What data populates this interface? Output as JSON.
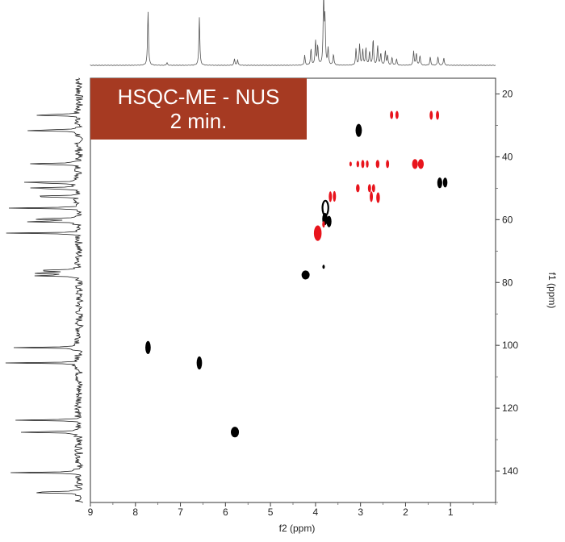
{
  "banner": {
    "line1": "HSQC-ME - NUS",
    "line2": "2 min."
  },
  "colors": {
    "banner": "#a63a22",
    "positive": "#000000",
    "negative": "#e8141c"
  },
  "chart_data": {
    "type": "scatter",
    "title": "",
    "xlabel": "f2 (ppm)",
    "ylabel": "f1 (ppm)",
    "xlim": [
      9.0,
      0.0
    ],
    "ylim": [
      15,
      150
    ],
    "x_reversed": true,
    "y_reversed": true,
    "x_ticks": [
      9,
      8,
      7,
      6,
      5,
      4,
      3,
      2,
      1
    ],
    "y_ticks": [
      20,
      40,
      60,
      80,
      100,
      120,
      140
    ],
    "grid": false,
    "series": [
      {
        "color": "#000000",
        "points": [
          {
            "x": 7.72,
            "y": 100.7,
            "w": 0.12,
            "h": 1.6
          },
          {
            "x": 6.58,
            "y": 105.6,
            "w": 0.12,
            "h": 1.6
          },
          {
            "x": 5.79,
            "y": 127.6,
            "w": 0.18,
            "h": 1.3
          },
          {
            "x": 4.22,
            "y": 77.6,
            "w": 0.18,
            "h": 1.1
          },
          {
            "x": 3.82,
            "y": 75.0,
            "w": 0.05,
            "h": 0.5
          },
          {
            "x": 3.78,
            "y": 56.3,
            "w": 0.13,
            "h": 1.8,
            "ring": true
          },
          {
            "x": 3.79,
            "y": 59.8,
            "w": 0.12,
            "h": 1.5
          },
          {
            "x": 3.7,
            "y": 60.6,
            "w": 0.11,
            "h": 1.4
          },
          {
            "x": 3.04,
            "y": 31.6,
            "w": 0.14,
            "h": 1.6
          },
          {
            "x": 1.24,
            "y": 48.3,
            "w": 0.11,
            "h": 1.3
          },
          {
            "x": 1.12,
            "y": 48.2,
            "w": 0.1,
            "h": 1.2
          }
        ]
      },
      {
        "color": "#e8141c",
        "points": [
          {
            "x": 3.95,
            "y": 64.3,
            "w": 0.17,
            "h": 1.9
          },
          {
            "x": 3.82,
            "y": 61.5,
            "w": 0.06,
            "h": 0.8
          },
          {
            "x": 3.67,
            "y": 52.7,
            "w": 0.07,
            "h": 1.3
          },
          {
            "x": 3.58,
            "y": 52.6,
            "w": 0.07,
            "h": 1.3
          },
          {
            "x": 3.06,
            "y": 50.0,
            "w": 0.08,
            "h": 1.0
          },
          {
            "x": 2.8,
            "y": 50.0,
            "w": 0.07,
            "h": 1.0
          },
          {
            "x": 2.71,
            "y": 50.0,
            "w": 0.07,
            "h": 1.0
          },
          {
            "x": 2.76,
            "y": 52.7,
            "w": 0.07,
            "h": 1.3
          },
          {
            "x": 2.61,
            "y": 53.0,
            "w": 0.08,
            "h": 1.3
          },
          {
            "x": 3.22,
            "y": 42.3,
            "w": 0.04,
            "h": 0.6
          },
          {
            "x": 3.06,
            "y": 42.3,
            "w": 0.06,
            "h": 0.8
          },
          {
            "x": 2.95,
            "y": 42.3,
            "w": 0.07,
            "h": 1.0
          },
          {
            "x": 2.85,
            "y": 42.3,
            "w": 0.06,
            "h": 0.9
          },
          {
            "x": 2.62,
            "y": 42.3,
            "w": 0.08,
            "h": 1.0
          },
          {
            "x": 2.4,
            "y": 42.3,
            "w": 0.07,
            "h": 1.0
          },
          {
            "x": 1.79,
            "y": 42.3,
            "w": 0.13,
            "h": 1.2
          },
          {
            "x": 1.66,
            "y": 42.3,
            "w": 0.13,
            "h": 1.2
          },
          {
            "x": 2.31,
            "y": 26.7,
            "w": 0.07,
            "h": 1.0
          },
          {
            "x": 2.19,
            "y": 26.7,
            "w": 0.07,
            "h": 1.0
          },
          {
            "x": 1.43,
            "y": 26.8,
            "w": 0.07,
            "h": 1.1
          },
          {
            "x": 1.29,
            "y": 26.8,
            "w": 0.07,
            "h": 1.1
          }
        ]
      }
    ],
    "projections": {
      "f2_1h_peaks": [
        {
          "ppm": 7.72,
          "h": 1.0
        },
        {
          "ppm": 6.58,
          "h": 0.88
        },
        {
          "ppm": 5.8,
          "h": 0.12
        },
        {
          "ppm": 5.73,
          "h": 0.1
        },
        {
          "ppm": 7.3,
          "h": 0.05
        },
        {
          "ppm": 4.24,
          "h": 0.18
        },
        {
          "ppm": 4.1,
          "h": 0.3
        },
        {
          "ppm": 4.0,
          "h": 0.45
        },
        {
          "ppm": 3.95,
          "h": 0.35
        },
        {
          "ppm": 3.82,
          "h": 1.25
        },
        {
          "ppm": 3.79,
          "h": 0.8
        },
        {
          "ppm": 3.72,
          "h": 0.3
        },
        {
          "ppm": 3.6,
          "h": 0.2
        },
        {
          "ppm": 3.1,
          "h": 0.3
        },
        {
          "ppm": 3.02,
          "h": 0.38
        },
        {
          "ppm": 2.95,
          "h": 0.28
        },
        {
          "ppm": 2.88,
          "h": 0.32
        },
        {
          "ppm": 2.8,
          "h": 0.25
        },
        {
          "ppm": 2.72,
          "h": 0.48
        },
        {
          "ppm": 2.62,
          "h": 0.36
        },
        {
          "ppm": 2.55,
          "h": 0.22
        },
        {
          "ppm": 2.45,
          "h": 0.26
        },
        {
          "ppm": 2.4,
          "h": 0.18
        },
        {
          "ppm": 2.3,
          "h": 0.14
        },
        {
          "ppm": 2.2,
          "h": 0.12
        },
        {
          "ppm": 1.82,
          "h": 0.26
        },
        {
          "ppm": 1.76,
          "h": 0.22
        },
        {
          "ppm": 1.68,
          "h": 0.18
        },
        {
          "ppm": 1.45,
          "h": 0.15
        },
        {
          "ppm": 1.28,
          "h": 0.16
        },
        {
          "ppm": 1.15,
          "h": 0.14
        }
      ],
      "f1_13c_peaks": [
        {
          "ppm": 26.7,
          "h": 0.85
        },
        {
          "ppm": 31.6,
          "h": 0.95
        },
        {
          "ppm": 42.3,
          "h": 0.95
        },
        {
          "ppm": 48.2,
          "h": 0.95
        },
        {
          "ppm": 50.0,
          "h": 0.9
        },
        {
          "ppm": 52.6,
          "h": 0.85
        },
        {
          "ppm": 56.3,
          "h": 0.95
        },
        {
          "ppm": 59.8,
          "h": 0.92
        },
        {
          "ppm": 60.6,
          "h": 0.9
        },
        {
          "ppm": 64.3,
          "h": 0.95
        },
        {
          "ppm": 76.2,
          "h": 0.7
        },
        {
          "ppm": 77.0,
          "h": 0.9
        },
        {
          "ppm": 77.8,
          "h": 0.7
        },
        {
          "ppm": 100.7,
          "h": 0.95
        },
        {
          "ppm": 105.6,
          "h": 0.95
        },
        {
          "ppm": 123.8,
          "h": 0.85
        },
        {
          "ppm": 127.6,
          "h": 0.95
        },
        {
          "ppm": 140.5,
          "h": 0.95
        },
        {
          "ppm": 146.8,
          "h": 0.95
        }
      ]
    }
  }
}
